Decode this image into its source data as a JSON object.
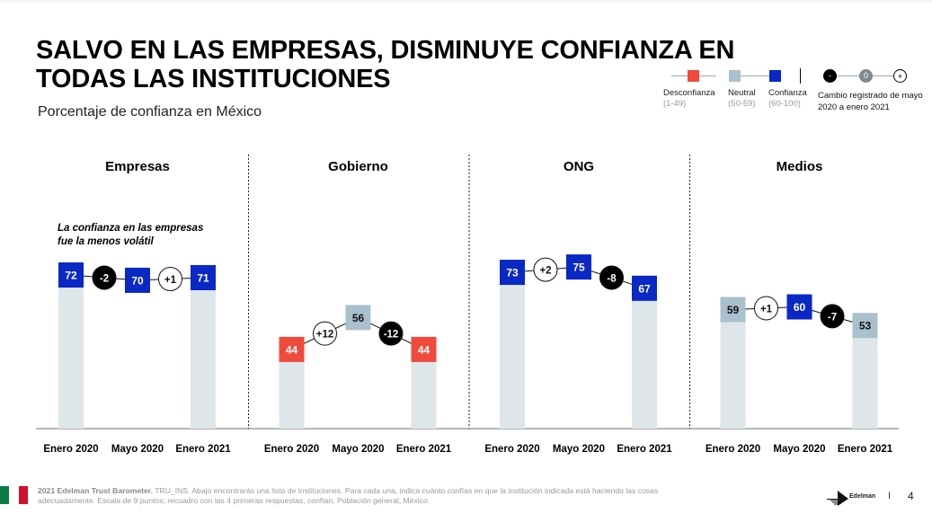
{
  "header": {
    "title_line1": "SALVO EN LAS EMPRESAS, DISMINUYE CONFIANZA EN",
    "title_line2": "TODAS LAS INSTITUCIONES",
    "subtitle": "Porcentaje de confianza en México"
  },
  "legend": {
    "categories": [
      {
        "label": "Desconfianza",
        "range": "(1-49)",
        "color": "#f04a3c"
      },
      {
        "label": "Neutral",
        "range": "(50-59)",
        "color": "#a9c1cd"
      },
      {
        "label": "Confianza",
        "range": "(60-100)",
        "color": "#0a28c4"
      }
    ],
    "change_symbols": [
      {
        "symbol": "-",
        "meaning": "negative"
      },
      {
        "symbol": "0",
        "meaning": "none"
      },
      {
        "symbol": "+",
        "meaning": "positive"
      }
    ],
    "change_label_line1": "Cambio registrado de mayo",
    "change_label_line2": "2020 a enero 2021"
  },
  "chart_data": {
    "type": "bar",
    "title": "SALVO EN LAS EMPRESAS, DISMINUYE CONFIANZA EN TODAS LAS INSTITUCIONES",
    "subtitle": "Porcentaje de confianza en México",
    "categories": [
      "Enero 2020",
      "Mayo 2020",
      "Enero 2021"
    ],
    "colors": {
      "desconfianza": "#f04a3c",
      "neutral": "#a9c1cd",
      "confianza": "#0a28c4",
      "bar": "#dfe6ea",
      "negative_change": "#000000",
      "positive_change": "#ffffff"
    },
    "thresholds": {
      "desconfianza": [
        1,
        49
      ],
      "neutral": [
        50,
        59
      ],
      "confianza": [
        60,
        100
      ]
    },
    "panels": [
      {
        "name": "Empresas",
        "values": [
          72,
          70,
          71
        ],
        "changes": [
          "-2",
          "+1"
        ],
        "annotation_line1": "La confianza en las empresas",
        "annotation_line2": "fue la menos volátil"
      },
      {
        "name": "Gobierno",
        "values": [
          44,
          56,
          44
        ],
        "changes": [
          "+12",
          "-12"
        ]
      },
      {
        "name": "ONG",
        "values": [
          73,
          75,
          67
        ],
        "changes": [
          "+2",
          "-8"
        ]
      },
      {
        "name": "Medios",
        "values": [
          59,
          60,
          53
        ],
        "changes": [
          "+1",
          "-7"
        ]
      }
    ]
  },
  "footer": {
    "source_bold": "2021 Edelman Trust Barometer.",
    "source_line1": " TRU_INS. Abajo encontrarás una lista de instituciones. Para cada una, indica cuánto confías en que la institución indicada está haciendo las cosas",
    "source_line2": "adecuadamente. Escala de 9 puntos; recuadro con las 4 primeras respuestas, confían. Población general, México.",
    "brand": "Edelman",
    "separator": "I",
    "page_number": "4"
  }
}
